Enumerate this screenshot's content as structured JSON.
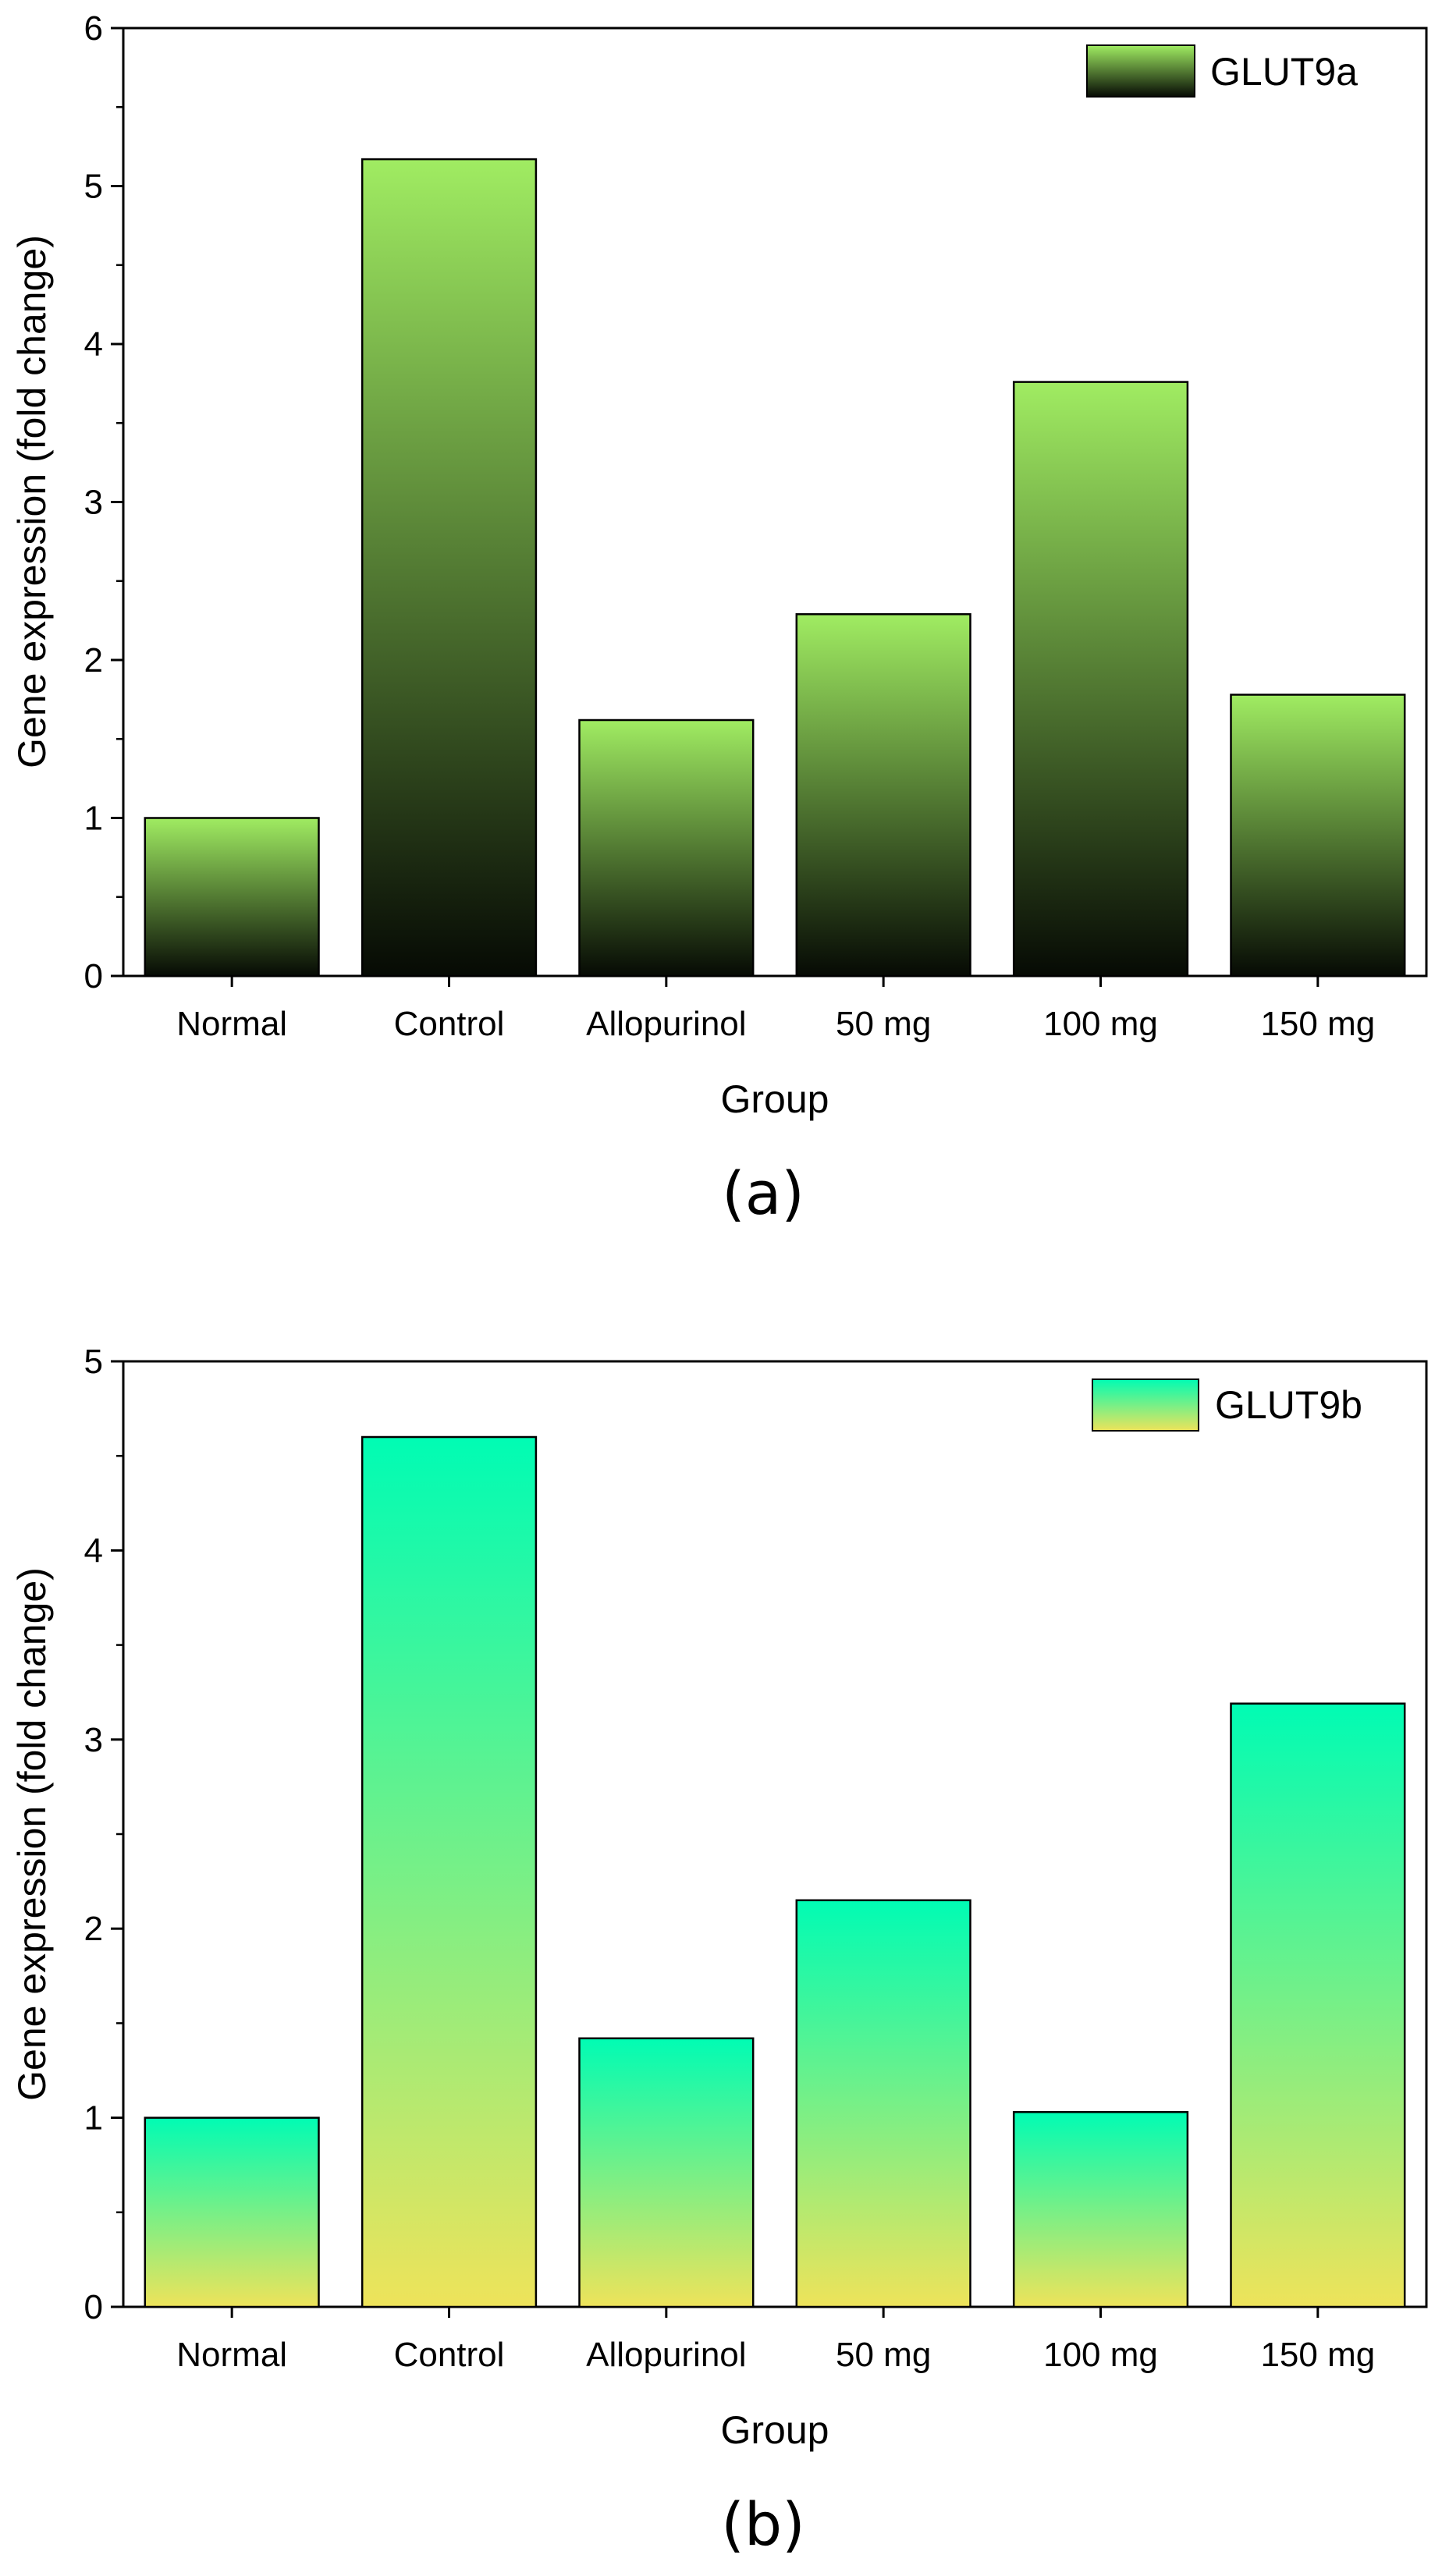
{
  "chart_data": [
    {
      "type": "bar",
      "panel_label": "(a)",
      "categories": [
        "Normal",
        "Control",
        "Allopurinol",
        "50 mg",
        "100 mg",
        "150 mg"
      ],
      "series": [
        {
          "name": "GLUT9a",
          "values": [
            1.0,
            5.17,
            1.62,
            2.29,
            3.76,
            1.78
          ]
        }
      ],
      "title": "",
      "xlabel": "Group",
      "ylabel": "Gene expression (fold change)",
      "ylim": [
        0,
        6
      ],
      "yticks": [
        0,
        1,
        2,
        3,
        4,
        5,
        6
      ],
      "legend_position": "top-right",
      "grid": false,
      "colors": {
        "top": "#a0ec62",
        "bottom": "#060a04",
        "stroke": "#000000"
      }
    },
    {
      "type": "bar",
      "panel_label": "(b)",
      "categories": [
        "Normal",
        "Control",
        "Allopurinol",
        "50 mg",
        "100 mg",
        "150 mg"
      ],
      "series": [
        {
          "name": "GLUT9b",
          "values": [
            1.0,
            4.6,
            1.42,
            2.15,
            1.03,
            3.19
          ]
        }
      ],
      "title": "",
      "xlabel": "Group",
      "ylabel": "Gene expression (fold change)",
      "ylim": [
        0,
        5
      ],
      "yticks": [
        0,
        1,
        2,
        3,
        4,
        5
      ],
      "legend_position": "top-right",
      "grid": false,
      "colors": {
        "top": "#00fcb4",
        "bottom": "#eee35a",
        "stroke": "#000000"
      }
    }
  ]
}
